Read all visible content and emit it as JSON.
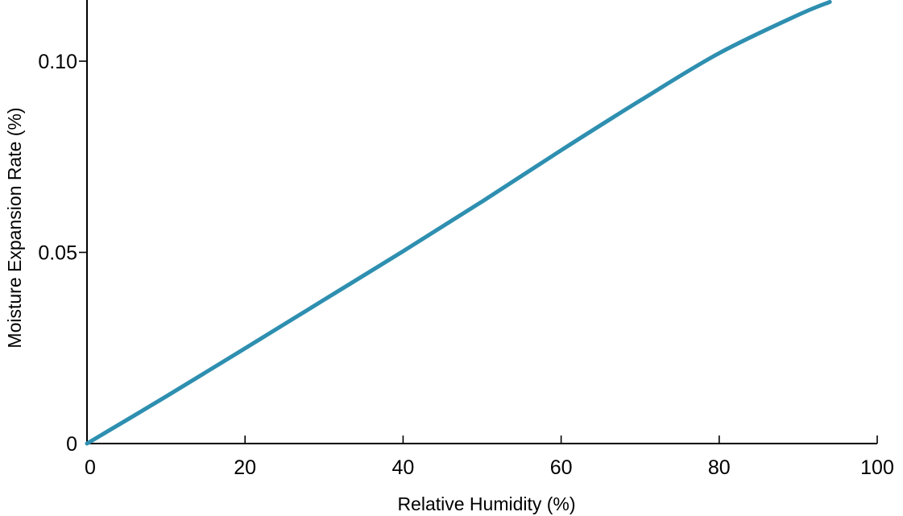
{
  "chart_data": {
    "type": "line",
    "title": "",
    "xlabel": "Relative Humidity (%)",
    "ylabel": "Moisture Expansion Rate (%)",
    "xlim": [
      0,
      100
    ],
    "ylim": [
      0,
      0.116
    ],
    "x_ticks": [
      0,
      20,
      40,
      60,
      80,
      100
    ],
    "x_tick_labels": [
      "0",
      "20",
      "40",
      "60",
      "80",
      "100"
    ],
    "y_ticks": [
      0,
      0.05,
      0.1
    ],
    "y_tick_labels": [
      "0",
      "0.05",
      "0.10"
    ],
    "grid": false,
    "legend": "none",
    "series": [
      {
        "color": "#2e8fb0",
        "x": [
          0,
          10,
          20,
          30,
          40,
          50,
          60,
          70,
          80,
          90,
          94
        ],
        "y": [
          0,
          0.0123,
          0.0249,
          0.0376,
          0.0503,
          0.0633,
          0.0767,
          0.0897,
          0.1021,
          0.1121,
          0.1155
        ]
      }
    ]
  }
}
